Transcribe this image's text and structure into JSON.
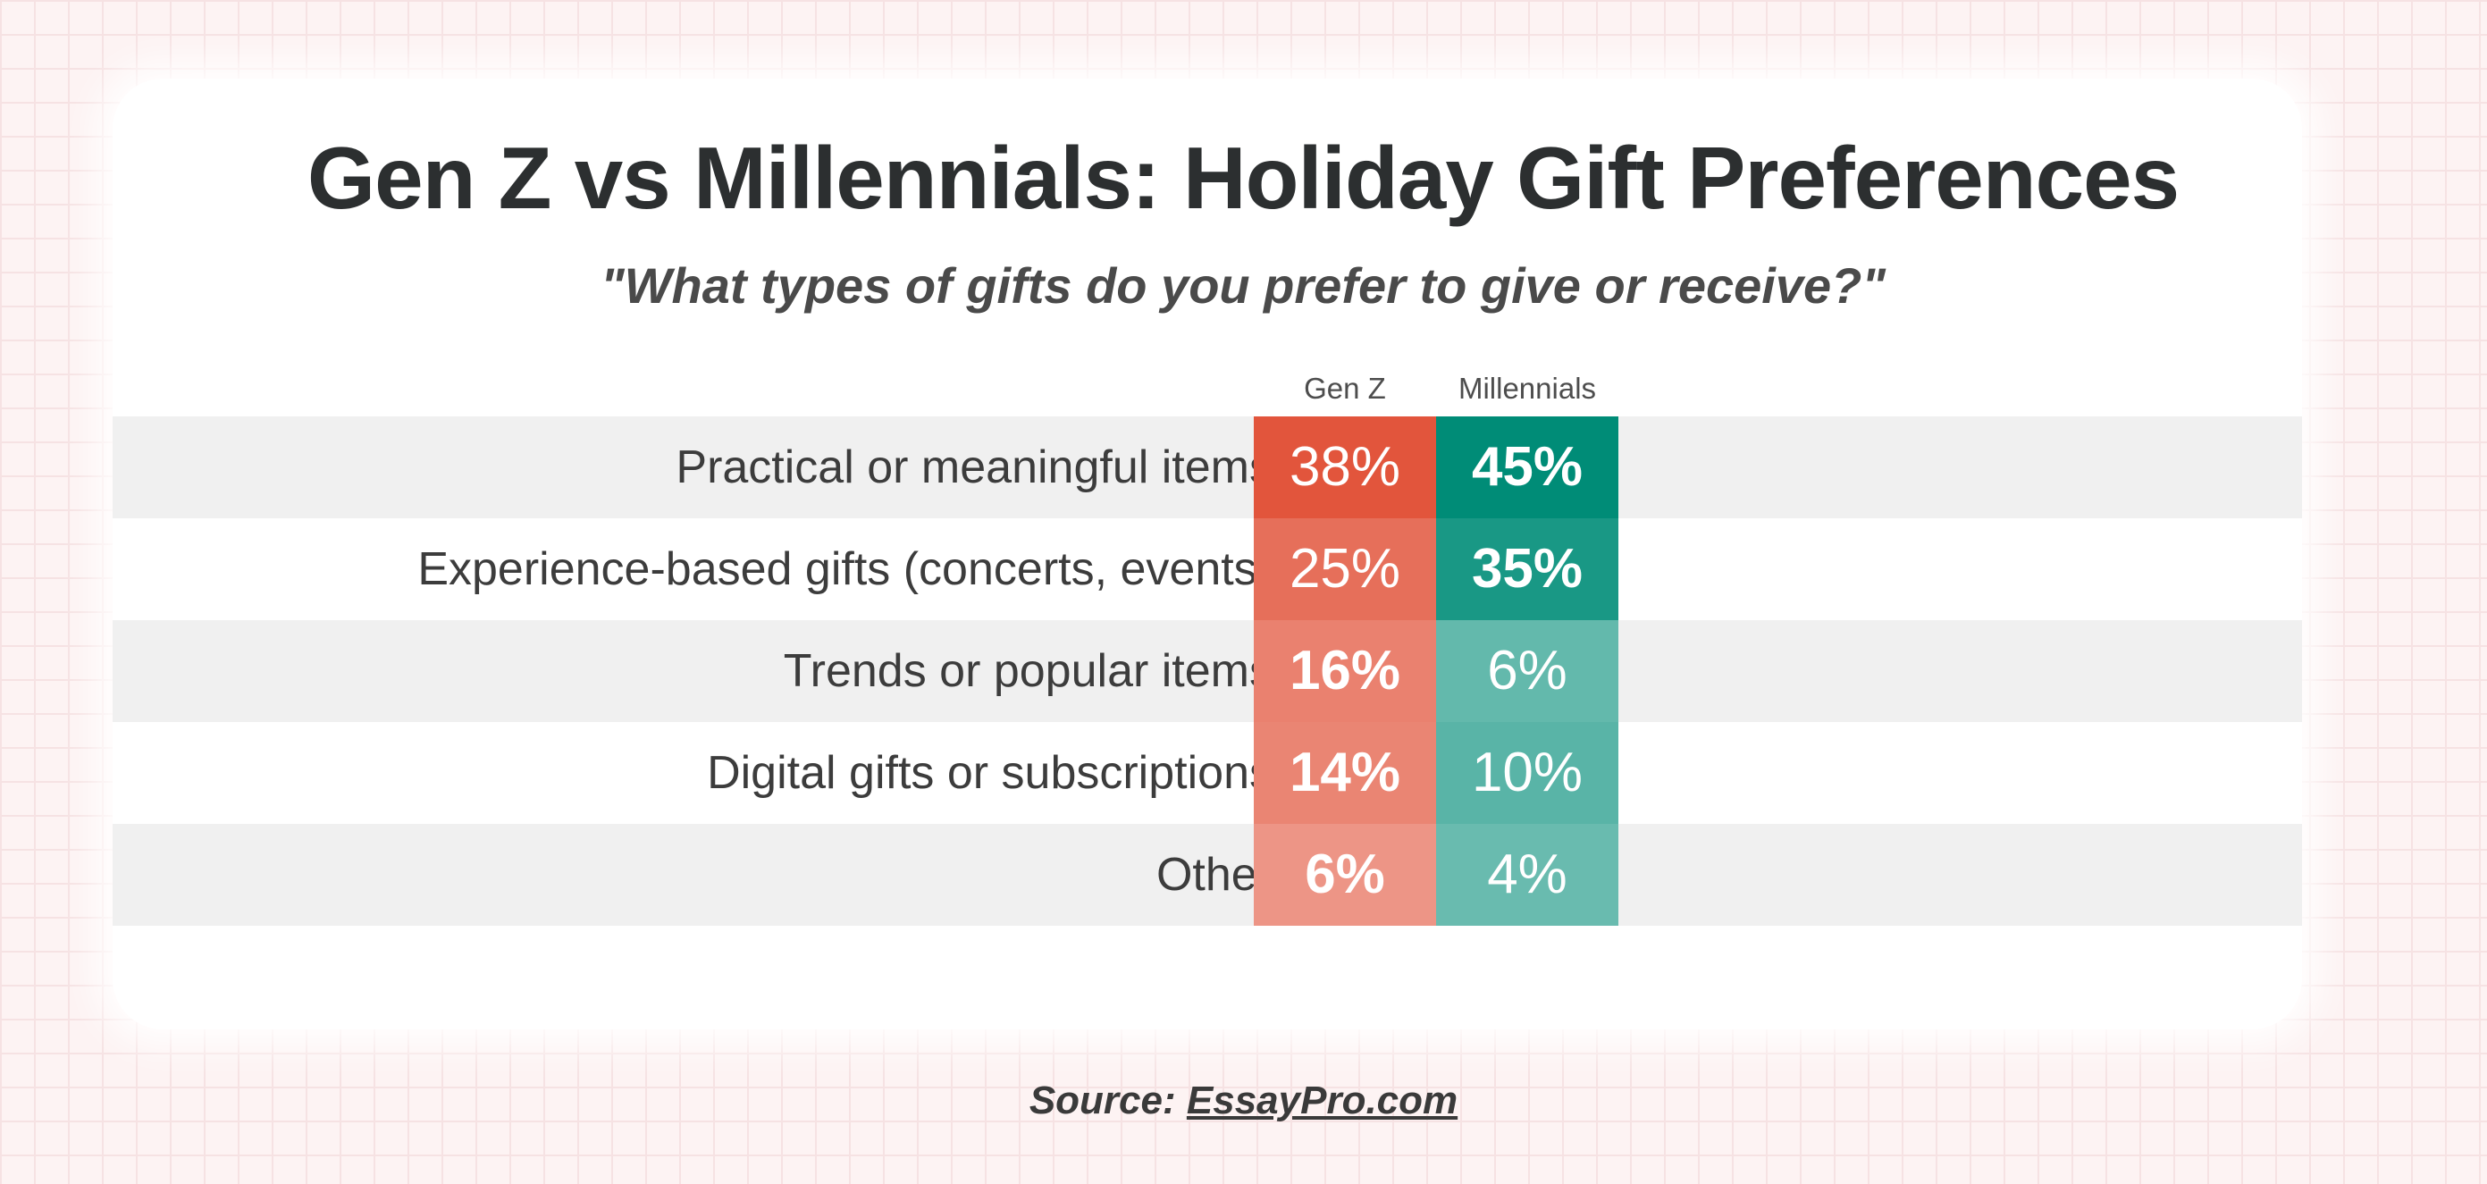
{
  "colors": {
    "gen_z": "#e2553c",
    "millennials": "#008c77",
    "row_shade": "#f0f0f0",
    "background": "#fdf3f3"
  },
  "chart_data": {
    "type": "table",
    "title": "Gen Z vs Millennials: Holiday Gift Preferences",
    "subtitle": "\"What types of gifts do you prefer to give or receive?\"",
    "columns": [
      "Gen Z",
      "Millennials"
    ],
    "unit": "%",
    "categories": [
      "Practical or meaningful items",
      "Experience-based gifts (concerts, events)",
      "Trends or popular items",
      "Digital gifts or subscriptions",
      "Other"
    ],
    "series": [
      {
        "name": "Gen Z",
        "values": [
          38,
          25,
          16,
          14,
          6
        ]
      },
      {
        "name": "Millennials",
        "values": [
          45,
          35,
          6,
          10,
          4
        ]
      }
    ],
    "value_labels": {
      "gen_z": [
        "38%",
        "25%",
        "16%",
        "14%",
        "6%"
      ],
      "millennials": [
        "45%",
        "35%",
        "6%",
        "10%",
        "4%"
      ]
    },
    "highlight": {
      "gen_z": [
        false,
        false,
        true,
        true,
        true
      ],
      "millennials": [
        true,
        true,
        false,
        false,
        false
      ]
    }
  },
  "source": {
    "prefix": "Source: ",
    "link": "EssayPro.com"
  }
}
